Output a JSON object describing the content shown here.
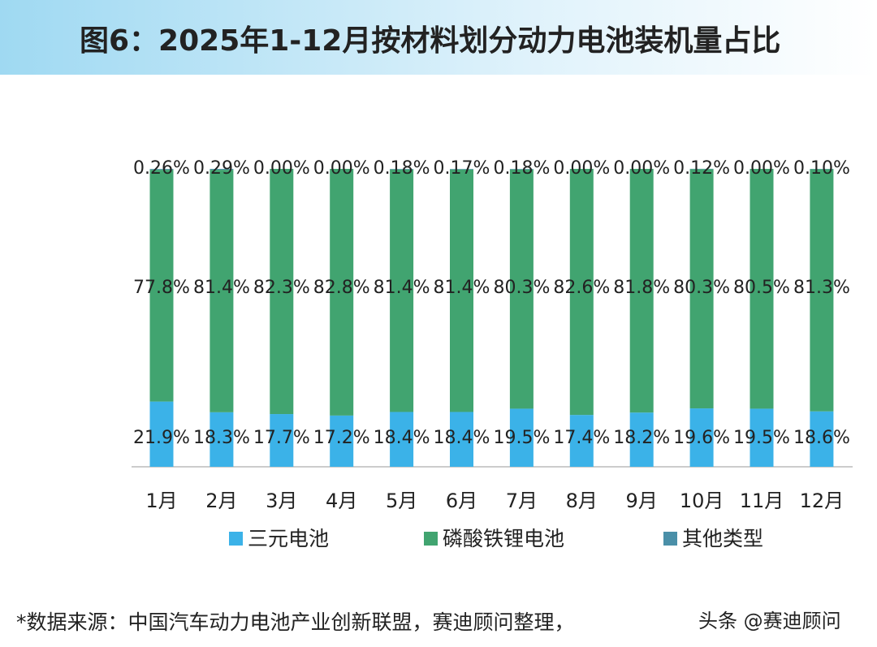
{
  "chart_data": {
    "type": "stacked_bar",
    "title": "图6：2025年1-12月按材料划分动力电池装机量占比",
    "categories": [
      "1月",
      "2月",
      "3月",
      "4月",
      "5月",
      "6月",
      "7月",
      "8月",
      "9月",
      "10月",
      "11月",
      "12月"
    ],
    "series": [
      {
        "name": "三元电池",
        "color": "#3bb2e8",
        "values": [
          21.9,
          18.3,
          17.7,
          17.2,
          18.4,
          18.4,
          19.5,
          17.4,
          18.2,
          19.6,
          19.5,
          18.6
        ],
        "value_labels": [
          "21.9%",
          "18.3%",
          "17.7%",
          "17.2%",
          "18.4%",
          "18.4%",
          "19.5%",
          "17.4%",
          "18.2%",
          "19.6%",
          "19.5%",
          "18.6%"
        ]
      },
      {
        "name": "磷酸铁锂电池",
        "color": "#41a470",
        "values": [
          77.8,
          81.4,
          82.3,
          82.8,
          81.4,
          81.4,
          80.3,
          82.6,
          81.8,
          80.3,
          80.5,
          81.3
        ],
        "value_labels": [
          "77.8%",
          "81.4%",
          "82.3%",
          "82.8%",
          "81.4%",
          "81.4%",
          "80.3%",
          "82.6%",
          "81.8%",
          "80.3%",
          "80.5%",
          "81.3%"
        ]
      },
      {
        "name": "其他类型",
        "color": "#4a8fa8",
        "values": [
          0.26,
          0.29,
          0,
          0,
          0.18,
          0.17,
          0.18,
          0,
          0,
          0.12,
          0,
          0.1
        ],
        "value_labels": [
          "0.26%",
          "0.29%",
          "0.00%",
          "0.00%",
          "0.18%",
          "0.17%",
          "0.18%",
          "0.00%",
          "0.00%",
          "0.12%",
          "0.00%",
          "0.10%"
        ]
      }
    ],
    "ylim": [
      0,
      100
    ],
    "source": "*数据来源：中国汽车动力电池产业创新联盟，赛迪顾问整理，",
    "watermark": "头条 @赛迪顾问"
  }
}
